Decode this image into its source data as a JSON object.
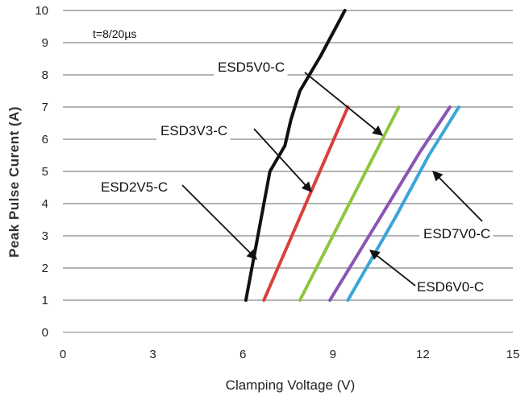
{
  "chart_data": {
    "type": "line",
    "title": "",
    "xlabel": "Clamping Voltage (V)",
    "ylabel": "Peak  Pulse Curent (A)",
    "xlim": [
      0,
      15
    ],
    "ylim": [
      0,
      10
    ],
    "xticks": [
      "0",
      "3",
      "6",
      "9",
      "12",
      "15"
    ],
    "yticks": [
      "0",
      "1",
      "2",
      "3",
      "4",
      "5",
      "6",
      "7",
      "8",
      "9",
      "10"
    ],
    "grid": "horizontal",
    "annotation": "t=8/20µs",
    "series": [
      {
        "name": "ESD2V5-C",
        "color": "#111111",
        "points": [
          [
            6.1,
            1
          ],
          [
            6.5,
            3
          ],
          [
            6.9,
            5
          ],
          [
            7.4,
            5.8
          ],
          [
            7.6,
            6.6
          ],
          [
            7.9,
            7.5
          ],
          [
            8.6,
            8.6
          ],
          [
            9.4,
            10
          ]
        ]
      },
      {
        "name": "ESD3V3-C",
        "color": "#d9403c",
        "points": [
          [
            6.7,
            1
          ],
          [
            9.5,
            7
          ]
        ]
      },
      {
        "name": "ESD5V0-C",
        "color": "#8fc63e",
        "points": [
          [
            7.9,
            1
          ],
          [
            11.2,
            7
          ]
        ]
      },
      {
        "name": "ESD6V0-C",
        "color": "#8a55b5",
        "points": [
          [
            8.9,
            1
          ],
          [
            10.6,
            3.6
          ],
          [
            11.9,
            5.6
          ],
          [
            12.9,
            7
          ]
        ]
      },
      {
        "name": "ESD7V0-C",
        "color": "#3aa6d8",
        "points": [
          [
            9.5,
            1
          ],
          [
            11.1,
            3.6
          ],
          [
            12.2,
            5.5
          ],
          [
            13.2,
            7
          ]
        ]
      }
    ]
  }
}
